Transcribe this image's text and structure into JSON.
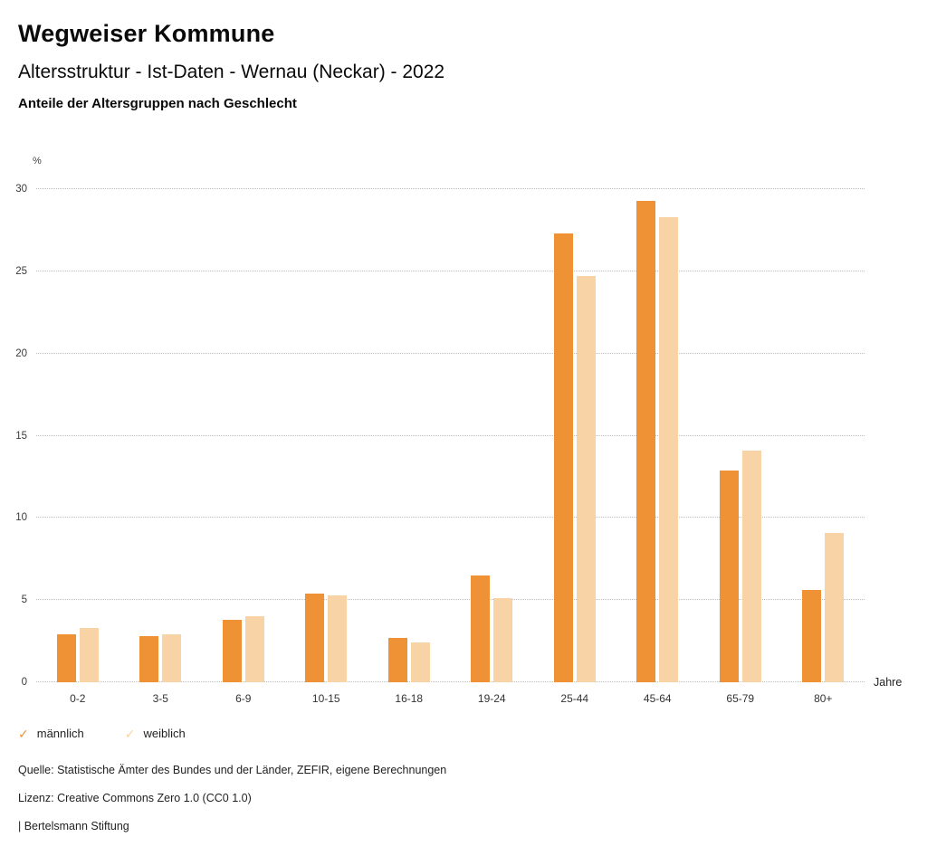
{
  "header": {
    "title": "Wegweiser Kommune",
    "subtitle": "Altersstruktur - Ist-Daten - Wernau (Neckar) - 2022",
    "section_title": "Anteile der Altersgruppen nach Geschlecht"
  },
  "chart_data": {
    "type": "bar",
    "title": "Anteile der Altersgruppen nach Geschlecht",
    "categories": [
      "0-2",
      "3-5",
      "6-9",
      "10-15",
      "16-18",
      "19-24",
      "25-44",
      "45-64",
      "65-79",
      "80+"
    ],
    "series": [
      {
        "name": "männlich",
        "color": "#ef9235",
        "values": [
          2.9,
          2.8,
          3.8,
          5.4,
          2.7,
          6.5,
          27.3,
          29.3,
          12.9,
          5.6
        ]
      },
      {
        "name": "weiblich",
        "color": "#f8d3a5",
        "values": [
          3.3,
          2.9,
          4.0,
          5.3,
          2.4,
          5.1,
          24.7,
          28.3,
          14.1,
          9.1
        ]
      }
    ],
    "ylabel": "%",
    "xlabel": "Jahre",
    "yticks": [
      0,
      5,
      10,
      15,
      20,
      25,
      30
    ],
    "ylim": [
      0,
      31
    ],
    "grid": "dotted-horizontal",
    "legend_position": "bottom-left"
  },
  "legend": {
    "items": [
      {
        "label": "männlich",
        "color": "#ef9235",
        "icon": "check"
      },
      {
        "label": "weiblich",
        "color": "#f8d3a5",
        "icon": "check"
      }
    ]
  },
  "footer": {
    "source": "Quelle: Statistische Ämter des Bundes und der Länder, ZEFIR, eigene Berechnungen",
    "license": "Lizenz: Creative Commons Zero 1.0 (CC0 1.0)",
    "attribution": "| Bertelsmann Stiftung"
  }
}
